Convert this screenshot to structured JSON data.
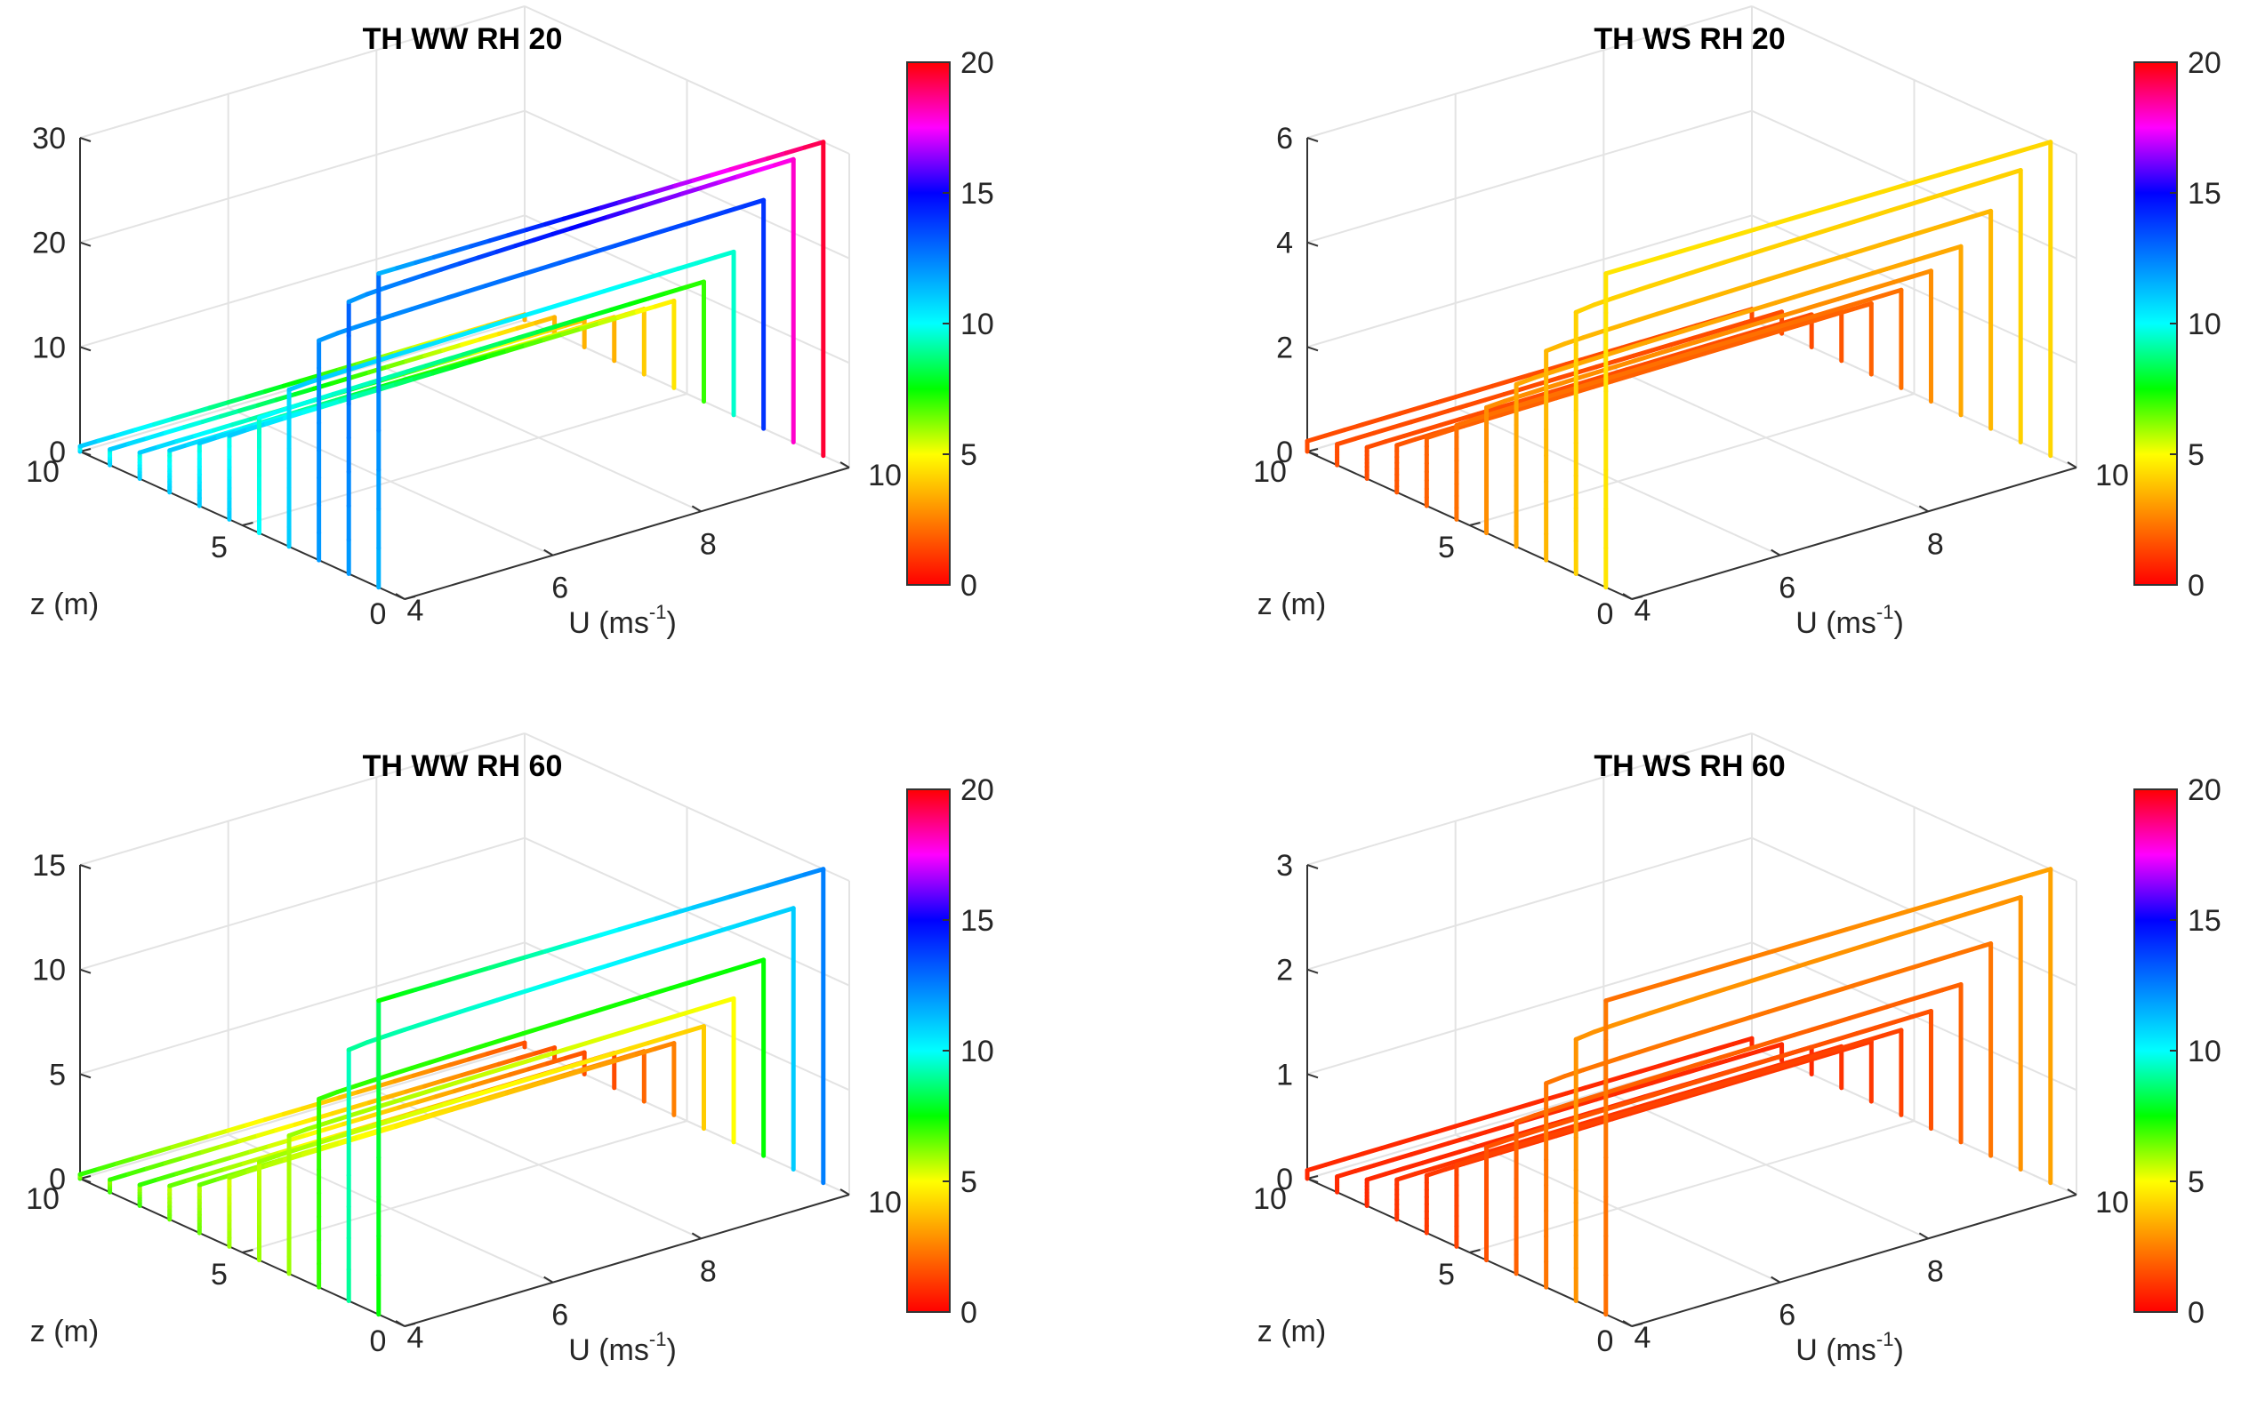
{
  "chart_data": [
    {
      "type": "line3d",
      "title": "TH WW RH 20",
      "xlabel": "U (ms",
      "xlabel_sup": "-1",
      "xlabel_end": ")",
      "ylabel": "z (m)",
      "zlabel": "",
      "x_ticks": [
        "4",
        "6",
        "8",
        "10"
      ],
      "y_ticks": [
        "0",
        "5",
        "10"
      ],
      "z_ticks": [
        "0",
        "10",
        "20",
        "30"
      ],
      "xlim": [
        4,
        10
      ],
      "ylim": [
        0,
        10
      ],
      "zlim": [
        0,
        30
      ],
      "colorbar": {
        "ticks": [
          "0",
          "5",
          "10",
          "15",
          "20"
        ],
        "range": [
          0,
          20
        ]
      },
      "series": [
        {
          "U": 4.0,
          "zmax": 0.5,
          "c_low": 11,
          "c_high": 3.5
        },
        {
          "U": 4.0,
          "zmax": 1.5,
          "c_low": 11,
          "c_high": 3.5
        },
        {
          "U": 4.0,
          "zmax": 2.5,
          "c_low": 11,
          "c_high": 3.5
        },
        {
          "U": 4.0,
          "zmax": 4,
          "c_low": 11,
          "c_high": 3.5
        },
        {
          "U": 4.0,
          "zmax": 6,
          "c_low": 11,
          "c_high": 4
        },
        {
          "U": 4.0,
          "zmax": 8,
          "c_low": 11,
          "c_high": 4.5
        },
        {
          "U": 4.0,
          "zmax": 11,
          "c_low": 10,
          "c_high": 7
        },
        {
          "U": 4.0,
          "zmax": 15,
          "c_low": 11,
          "c_high": 9.5
        },
        {
          "U": 4.0,
          "zmax": 21,
          "c_low": 12,
          "c_high": 14
        },
        {
          "U": 4.0,
          "zmax": 26,
          "c_low": 12,
          "c_high": 18
        },
        {
          "U": 4.0,
          "zmax": 30,
          "c_low": 11.5,
          "c_high": 19.5
        }
      ]
    },
    {
      "type": "line3d",
      "title": "TH WS RH 20",
      "xlabel": "U (ms",
      "xlabel_sup": "-1",
      "xlabel_end": ")",
      "ylabel": "z (m)",
      "zlabel": "",
      "x_ticks": [
        "4",
        "6",
        "8",
        "10"
      ],
      "y_ticks": [
        "0",
        "5",
        "10"
      ],
      "z_ticks": [
        "0",
        "2",
        "4",
        "6"
      ],
      "xlim": [
        4,
        10
      ],
      "ylim": [
        0,
        10
      ],
      "zlim": [
        0,
        6
      ],
      "colorbar": {
        "ticks": [
          "0",
          "5",
          "10",
          "15",
          "20"
        ],
        "range": [
          0,
          20
        ]
      },
      "series": [
        {
          "U": 4.0,
          "zmax": 0.2,
          "c_low": 1.5,
          "c_high": 1.5
        },
        {
          "U": 4.0,
          "zmax": 0.4,
          "c_low": 1.5,
          "c_high": 1.5
        },
        {
          "U": 4.0,
          "zmax": 0.6,
          "c_low": 1.5,
          "c_high": 1.5
        },
        {
          "U": 4.0,
          "zmax": 0.9,
          "c_low": 1.7,
          "c_high": 1.7
        },
        {
          "U": 4.0,
          "zmax": 1.3,
          "c_low": 1.9,
          "c_high": 1.9
        },
        {
          "U": 4.0,
          "zmax": 1.8,
          "c_low": 2.2,
          "c_high": 2.2
        },
        {
          "U": 4.0,
          "zmax": 2.4,
          "c_low": 2.8,
          "c_high": 2.8
        },
        {
          "U": 4.0,
          "zmax": 3.1,
          "c_low": 3.3,
          "c_high": 3.3
        },
        {
          "U": 4.0,
          "zmax": 4.0,
          "c_low": 3.6,
          "c_high": 3.6
        },
        {
          "U": 4.0,
          "zmax": 5.0,
          "c_low": 4.1,
          "c_high": 4.1
        },
        {
          "U": 4.0,
          "zmax": 6.0,
          "c_low": 4.5,
          "c_high": 4.2
        }
      ]
    },
    {
      "type": "line3d",
      "title": "TH WW RH 60",
      "xlabel": "U (ms",
      "xlabel_sup": "-1",
      "xlabel_end": ")",
      "ylabel": "z (m)",
      "zlabel": "",
      "x_ticks": [
        "4",
        "6",
        "8",
        "10"
      ],
      "y_ticks": [
        "0",
        "5",
        "10"
      ],
      "z_ticks": [
        "0",
        "5",
        "10",
        "15"
      ],
      "xlim": [
        4,
        10
      ],
      "ylim": [
        0,
        10
      ],
      "zlim": [
        0,
        15
      ],
      "colorbar": {
        "ticks": [
          "0",
          "5",
          "10",
          "15",
          "20"
        ],
        "range": [
          0,
          20
        ]
      },
      "series": [
        {
          "U": 4.0,
          "zmax": 0.2,
          "c_low": 7,
          "c_high": 1.5
        },
        {
          "U": 4.0,
          "zmax": 0.6,
          "c_low": 7,
          "c_high": 1.5
        },
        {
          "U": 4.0,
          "zmax": 1.0,
          "c_low": 7,
          "c_high": 1.5
        },
        {
          "U": 4.0,
          "zmax": 1.6,
          "c_low": 6.5,
          "c_high": 1.5
        },
        {
          "U": 4.0,
          "zmax": 2.3,
          "c_low": 6.5,
          "c_high": 2
        },
        {
          "U": 4.0,
          "zmax": 3.3,
          "c_low": 6,
          "c_high": 2.5
        },
        {
          "U": 4.0,
          "zmax": 4.7,
          "c_low": 6,
          "c_high": 4
        },
        {
          "U": 4.0,
          "zmax": 6.6,
          "c_low": 6,
          "c_high": 5
        },
        {
          "U": 4.0,
          "zmax": 9.0,
          "c_low": 7,
          "c_high": 7.5
        },
        {
          "U": 4.0,
          "zmax": 12.0,
          "c_low": 9,
          "c_high": 11
        },
        {
          "U": 4.0,
          "zmax": 15.0,
          "c_low": 7.5,
          "c_high": 12.5
        }
      ]
    },
    {
      "type": "line3d",
      "title": "TH WS RH 60",
      "xlabel": "U (ms",
      "xlabel_sup": "-1",
      "xlabel_end": ")",
      "ylabel": "z (m)",
      "zlabel": "",
      "x_ticks": [
        "4",
        "6",
        "8",
        "10"
      ],
      "y_ticks": [
        "0",
        "5",
        "10"
      ],
      "z_ticks": [
        "0",
        "1",
        "2",
        "3"
      ],
      "xlim": [
        4,
        10
      ],
      "ylim": [
        0,
        10
      ],
      "zlim": [
        0,
        3
      ],
      "colorbar": {
        "ticks": [
          "0",
          "5",
          "10",
          "15",
          "20"
        ],
        "range": [
          0,
          20
        ]
      },
      "series": [
        {
          "U": 4.0,
          "zmax": 0.08,
          "c_low": 0.8,
          "c_high": 0.8
        },
        {
          "U": 4.0,
          "zmax": 0.15,
          "c_low": 0.8,
          "c_high": 0.8
        },
        {
          "U": 4.0,
          "zmax": 0.25,
          "c_low": 0.8,
          "c_high": 0.8
        },
        {
          "U": 4.0,
          "zmax": 0.38,
          "c_low": 1.0,
          "c_high": 1.0
        },
        {
          "U": 4.0,
          "zmax": 0.55,
          "c_low": 1.1,
          "c_high": 1.1
        },
        {
          "U": 4.0,
          "zmax": 0.78,
          "c_low": 1.3,
          "c_high": 1.3
        },
        {
          "U": 4.0,
          "zmax": 1.08,
          "c_low": 1.6,
          "c_high": 1.6
        },
        {
          "U": 4.0,
          "zmax": 1.45,
          "c_low": 1.9,
          "c_high": 1.9
        },
        {
          "U": 4.0,
          "zmax": 1.95,
          "c_low": 2.3,
          "c_high": 2.3
        },
        {
          "U": 4.0,
          "zmax": 2.5,
          "c_low": 2.9,
          "c_high": 2.9
        },
        {
          "U": 4.0,
          "zmax": 3.0,
          "c_low": 2.2,
          "c_high": 3.2
        }
      ]
    }
  ]
}
